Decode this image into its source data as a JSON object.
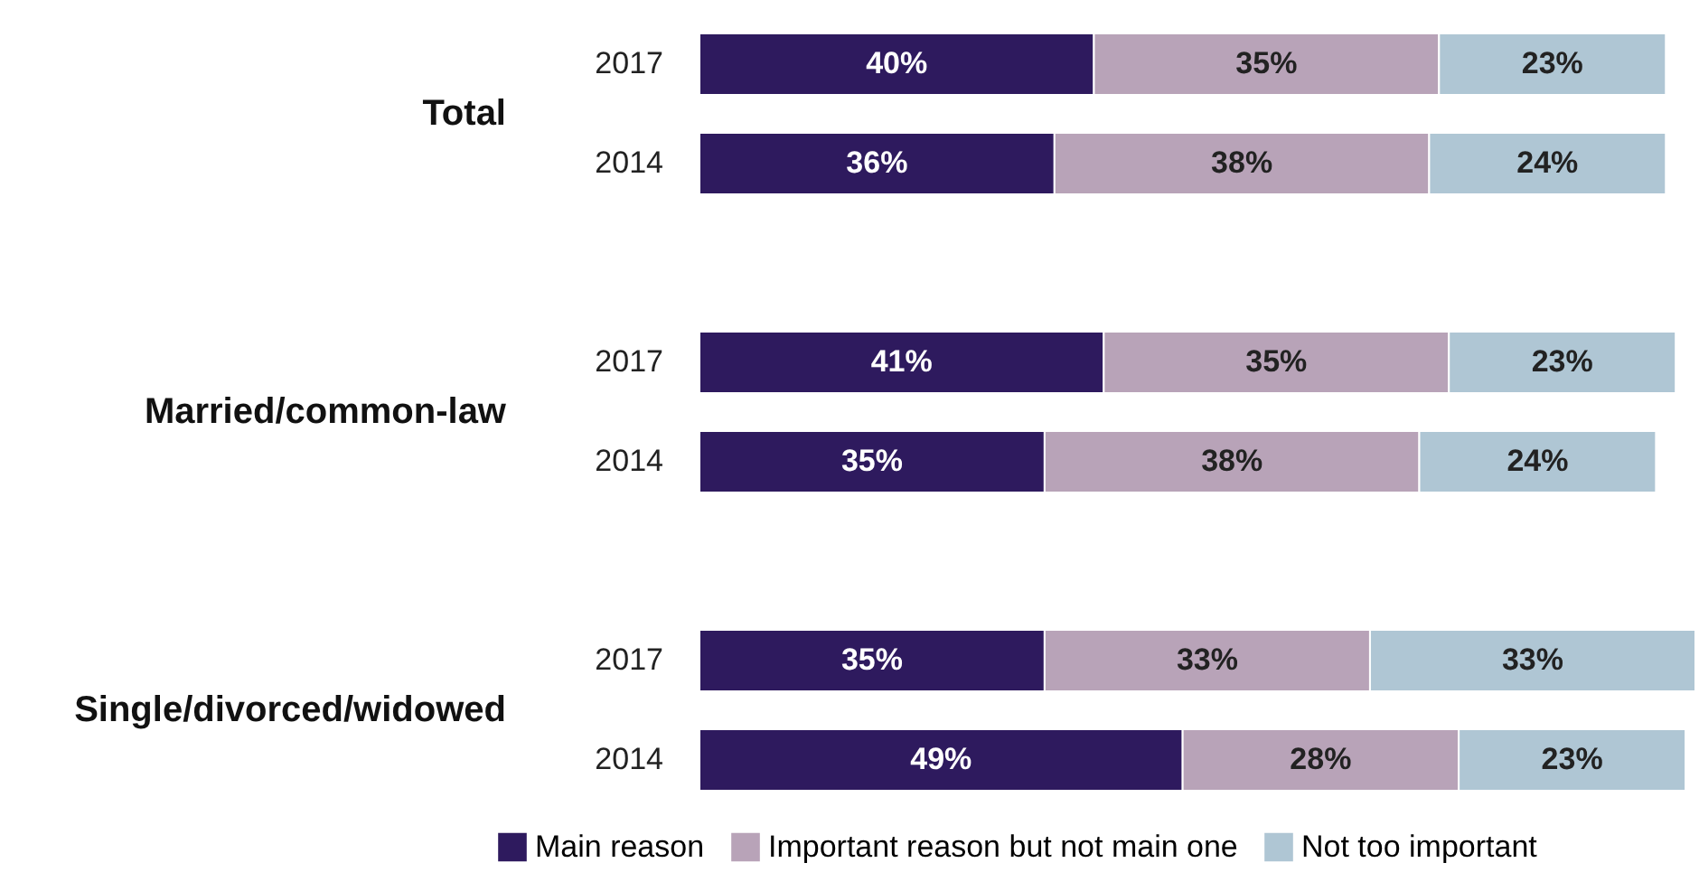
{
  "chart_data": {
    "type": "bar",
    "orientation": "horizontal",
    "stacked": true,
    "legend": "bottom",
    "grid": false,
    "categories": [
      "2017",
      "2014",
      "2017",
      "2014",
      "2017",
      "2014"
    ],
    "annotations": [
      "Total",
      "Married/common-law",
      "Single/divorced/widowed"
    ],
    "series": [
      {
        "name": "Main reason",
        "color": "#2e1a5e",
        "values": [
          40,
          36,
          41,
          35,
          35,
          49
        ],
        "value_labels": [
          "40%",
          "36%",
          "41%",
          "35%",
          "35%",
          "49%"
        ]
      },
      {
        "name": "Important reason but not main one",
        "color": "#b8a3b8",
        "values": [
          35,
          38,
          35,
          38,
          33,
          28
        ],
        "value_labels": [
          "35%",
          "38%",
          "35%",
          "38%",
          "33%",
          "28%"
        ]
      },
      {
        "name": "Not too important",
        "color": "#afc6d4",
        "values": [
          23,
          24,
          23,
          24,
          33,
          23
        ],
        "value_labels": [
          "23%",
          "24%",
          "23%",
          "24%",
          "33%",
          "23%"
        ]
      }
    ]
  }
}
